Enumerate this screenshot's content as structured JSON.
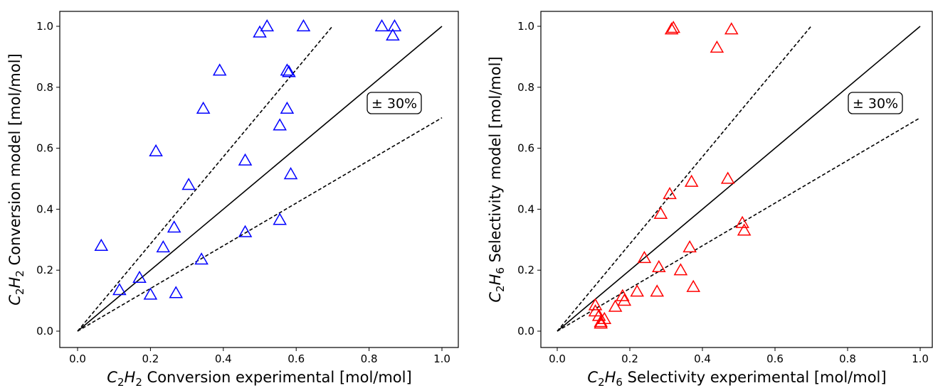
{
  "chart_data": [
    {
      "type": "scatter",
      "xlabel": {
        "base": "C",
        "s1": "2",
        "mid": "H",
        "s2": "2",
        "rest": " Conversion experimental [mol/mol]"
      },
      "ylabel": {
        "base": "C",
        "s1": "2",
        "mid": "H",
        "s2": "2",
        "rest": " Conversion model [mol/mol]"
      },
      "xlim": [
        0.0,
        1.0
      ],
      "ylim": [
        0.0,
        1.0
      ],
      "xticks": [
        "0.0",
        "0.2",
        "0.4",
        "0.6",
        "0.8",
        "1.0"
      ],
      "yticks": [
        "0.0",
        "0.2",
        "0.4",
        "0.6",
        "0.8",
        "1.0"
      ],
      "annotation": "± 30%",
      "marker_color": "#0000ff",
      "marker": "triangle-open",
      "grid": false,
      "reference_lines": [
        {
          "style": "solid",
          "slope": 1.0,
          "x_end": 1.0
        },
        {
          "style": "dashed",
          "slope": 1.43,
          "x_end": 0.7
        },
        {
          "style": "dashed",
          "slope": 0.7,
          "x_end": 1.0
        }
      ],
      "points": [
        {
          "x": 0.065,
          "y": 0.28
        },
        {
          "x": 0.115,
          "y": 0.135
        },
        {
          "x": 0.17,
          "y": 0.175
        },
        {
          "x": 0.2,
          "y": 0.12
        },
        {
          "x": 0.215,
          "y": 0.59
        },
        {
          "x": 0.235,
          "y": 0.275
        },
        {
          "x": 0.265,
          "y": 0.34
        },
        {
          "x": 0.27,
          "y": 0.125
        },
        {
          "x": 0.305,
          "y": 0.48
        },
        {
          "x": 0.34,
          "y": 0.235
        },
        {
          "x": 0.345,
          "y": 0.73
        },
        {
          "x": 0.39,
          "y": 0.855
        },
        {
          "x": 0.46,
          "y": 0.56
        },
        {
          "x": 0.46,
          "y": 0.325
        },
        {
          "x": 0.5,
          "y": 0.98
        },
        {
          "x": 0.52,
          "y": 1.0
        },
        {
          "x": 0.555,
          "y": 0.675
        },
        {
          "x": 0.555,
          "y": 0.365
        },
        {
          "x": 0.575,
          "y": 0.855
        },
        {
          "x": 0.58,
          "y": 0.85
        },
        {
          "x": 0.575,
          "y": 0.73
        },
        {
          "x": 0.585,
          "y": 0.515
        },
        {
          "x": 0.62,
          "y": 1.0
        },
        {
          "x": 0.835,
          "y": 1.0
        },
        {
          "x": 0.865,
          "y": 0.97
        },
        {
          "x": 0.87,
          "y": 1.0
        }
      ]
    },
    {
      "type": "scatter",
      "xlabel": {
        "base": "C",
        "s1": "2",
        "mid": "H",
        "s2": "6",
        "rest": " Selectivity experimental [mol/mol]"
      },
      "ylabel": {
        "base": "C",
        "s1": "2",
        "mid": "H",
        "s2": "6",
        "rest": " Selectivity model [mol/mol]"
      },
      "xlim": [
        0.0,
        1.0
      ],
      "ylim": [
        0.0,
        1.0
      ],
      "xticks": [
        "0.0",
        "0.2",
        "0.4",
        "0.6",
        "0.8",
        "1.0"
      ],
      "yticks": [
        "0.0",
        "0.2",
        "0.4",
        "0.6",
        "0.8",
        "1.0"
      ],
      "annotation": "± 30%",
      "marker_color": "#ff0000",
      "marker": "triangle-open",
      "grid": false,
      "reference_lines": [
        {
          "style": "solid",
          "slope": 1.0,
          "x_end": 1.0
        },
        {
          "style": "dashed",
          "slope": 1.43,
          "x_end": 0.7
        },
        {
          "style": "dashed",
          "slope": 0.7,
          "x_end": 1.0
        }
      ],
      "points": [
        {
          "x": 0.105,
          "y": 0.085
        },
        {
          "x": 0.105,
          "y": 0.065
        },
        {
          "x": 0.115,
          "y": 0.05
        },
        {
          "x": 0.12,
          "y": 0.03
        },
        {
          "x": 0.12,
          "y": 0.025
        },
        {
          "x": 0.13,
          "y": 0.04
        },
        {
          "x": 0.16,
          "y": 0.08
        },
        {
          "x": 0.18,
          "y": 0.115
        },
        {
          "x": 0.185,
          "y": 0.1
        },
        {
          "x": 0.22,
          "y": 0.13
        },
        {
          "x": 0.24,
          "y": 0.24
        },
        {
          "x": 0.275,
          "y": 0.13
        },
        {
          "x": 0.28,
          "y": 0.21
        },
        {
          "x": 0.285,
          "y": 0.385
        },
        {
          "x": 0.31,
          "y": 0.45
        },
        {
          "x": 0.315,
          "y": 0.99
        },
        {
          "x": 0.32,
          "y": 0.995
        },
        {
          "x": 0.34,
          "y": 0.2
        },
        {
          "x": 0.365,
          "y": 0.275
        },
        {
          "x": 0.37,
          "y": 0.49
        },
        {
          "x": 0.375,
          "y": 0.145
        },
        {
          "x": 0.44,
          "y": 0.93
        },
        {
          "x": 0.47,
          "y": 0.5
        },
        {
          "x": 0.48,
          "y": 0.99
        },
        {
          "x": 0.51,
          "y": 0.355
        },
        {
          "x": 0.515,
          "y": 0.33
        }
      ]
    }
  ]
}
